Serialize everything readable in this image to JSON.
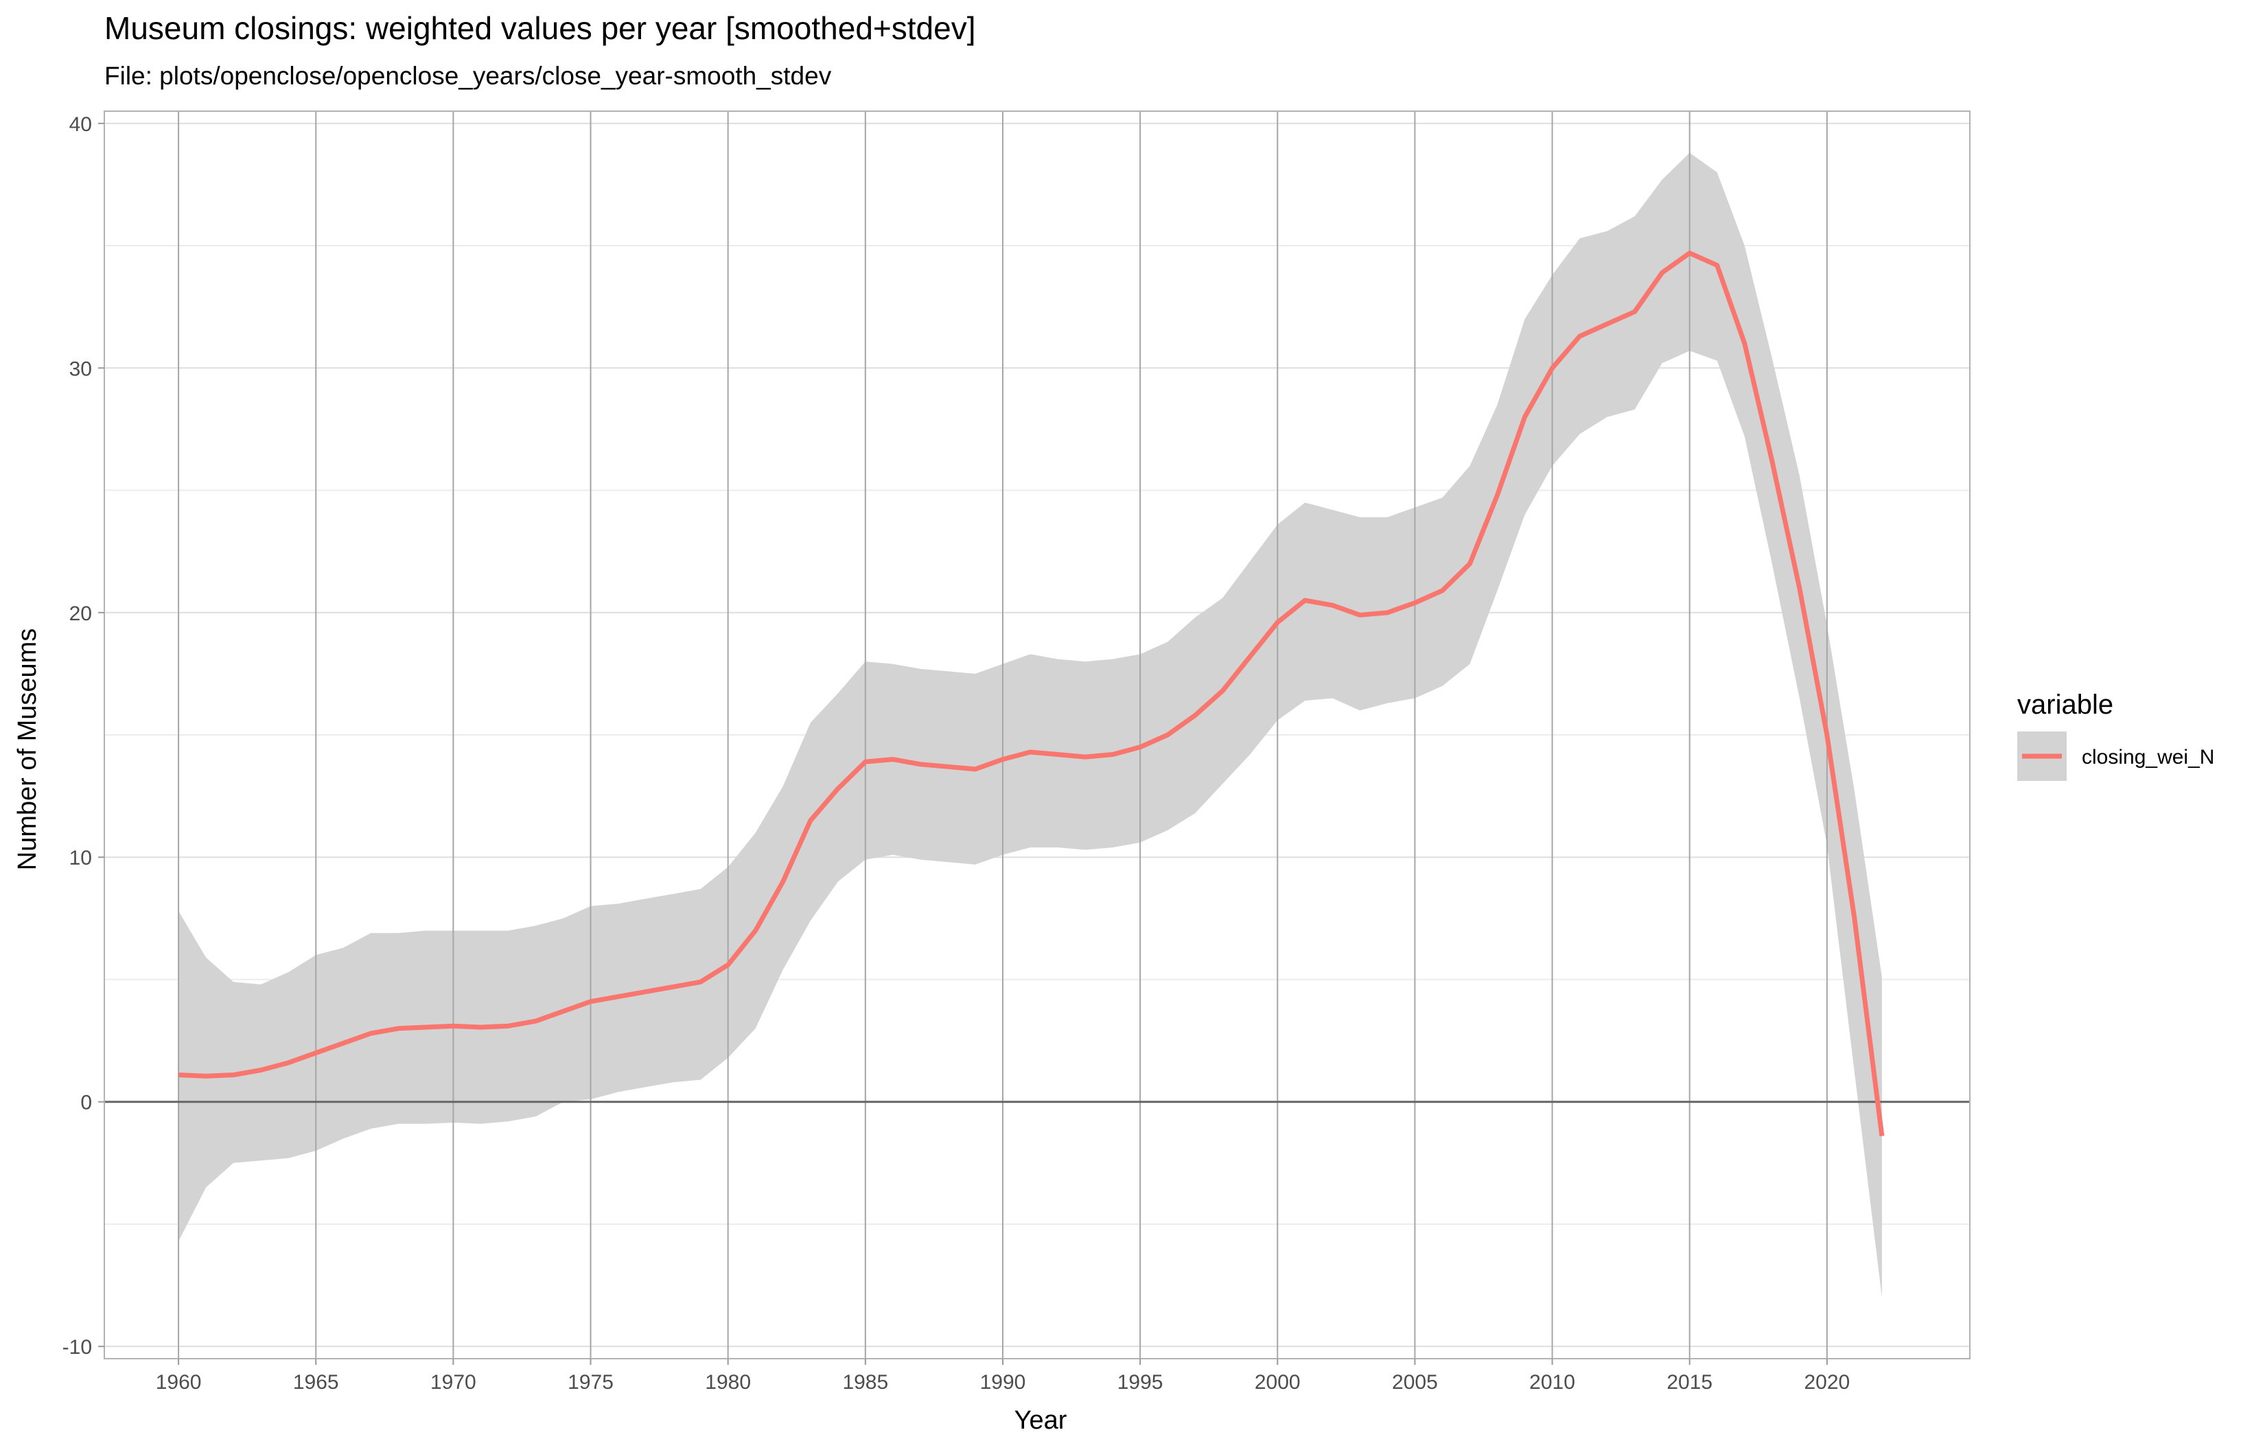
{
  "chart_data": {
    "type": "area",
    "title": "Museum closings: weighted values per year [smoothed+stdev]",
    "subtitle": "File: plots/openclose/openclose_years/close_year-smooth_stdev",
    "xlabel": "Year",
    "ylabel": "Number of Museums",
    "xlim": [
      1957.3,
      2025.2
    ],
    "ylim": [
      -10.5,
      40.5
    ],
    "x_ticks": [
      1960,
      1965,
      1970,
      1975,
      1980,
      1985,
      1990,
      1995,
      2000,
      2005,
      2010,
      2015,
      2020
    ],
    "y_ticks": [
      -10,
      0,
      10,
      20,
      30,
      40
    ],
    "grid": true,
    "legend": {
      "title": "variable",
      "position": "right",
      "entries": [
        "closing_wei_N"
      ]
    },
    "colors": {
      "line": "#F8766D",
      "ribbon": "#D3D3D3",
      "zero_line": "#666666"
    },
    "series": [
      {
        "name": "closing_wei_N",
        "x": [
          1960,
          1961,
          1962,
          1963,
          1964,
          1965,
          1966,
          1967,
          1968,
          1969,
          1970,
          1971,
          1972,
          1973,
          1974,
          1975,
          1976,
          1977,
          1978,
          1979,
          1980,
          1981,
          1982,
          1983,
          1984,
          1985,
          1986,
          1987,
          1988,
          1989,
          1990,
          1991,
          1992,
          1993,
          1994,
          1995,
          1996,
          1997,
          1998,
          1999,
          2000,
          2001,
          2002,
          2003,
          2004,
          2005,
          2006,
          2007,
          2008,
          2009,
          2010,
          2011,
          2012,
          2013,
          2014,
          2015,
          2016,
          2017,
          2018,
          2019,
          2020,
          2021,
          2022
        ],
        "y": [
          1.1,
          1.05,
          1.1,
          1.3,
          1.6,
          2.0,
          2.4,
          2.8,
          3.0,
          3.05,
          3.1,
          3.05,
          3.1,
          3.3,
          3.7,
          4.1,
          4.3,
          4.5,
          4.7,
          4.9,
          5.6,
          7.0,
          9.0,
          11.5,
          12.8,
          13.9,
          14.0,
          13.8,
          13.7,
          13.6,
          14.0,
          14.3,
          14.2,
          14.1,
          14.2,
          14.5,
          15.0,
          15.8,
          16.8,
          18.2,
          19.6,
          20.5,
          20.3,
          19.9,
          20.0,
          20.4,
          20.9,
          22.0,
          24.8,
          28.0,
          30.0,
          31.3,
          31.8,
          32.3,
          33.9,
          34.7,
          34.2,
          31.0,
          26.2,
          21.0,
          15.0,
          7.5,
          -1.4
        ],
        "ymin": [
          -5.7,
          -3.5,
          -2.5,
          -2.4,
          -2.3,
          -2.0,
          -1.5,
          -1.1,
          -0.9,
          -0.9,
          -0.85,
          -0.9,
          -0.8,
          -0.6,
          0.0,
          0.1,
          0.4,
          0.6,
          0.8,
          0.9,
          1.8,
          3.0,
          5.4,
          7.4,
          9.0,
          9.9,
          10.1,
          9.9,
          9.8,
          9.7,
          10.1,
          10.4,
          10.4,
          10.3,
          10.4,
          10.6,
          11.1,
          11.8,
          13.0,
          14.2,
          15.6,
          16.4,
          16.5,
          16.0,
          16.3,
          16.5,
          17.0,
          17.9,
          20.9,
          24.0,
          26.0,
          27.3,
          28.0,
          28.3,
          30.2,
          30.7,
          30.3,
          27.2,
          22.0,
          16.5,
          10.5,
          1.2,
          -8.0
        ],
        "ymax": [
          7.8,
          5.9,
          4.9,
          4.8,
          5.3,
          6.0,
          6.3,
          6.9,
          6.9,
          7.0,
          7.0,
          7.0,
          7.0,
          7.2,
          7.5,
          8.0,
          8.1,
          8.3,
          8.5,
          8.7,
          9.6,
          11.0,
          12.9,
          15.5,
          16.7,
          18.0,
          17.9,
          17.7,
          17.6,
          17.5,
          17.9,
          18.3,
          18.1,
          18.0,
          18.1,
          18.3,
          18.8,
          19.8,
          20.6,
          22.1,
          23.6,
          24.5,
          24.2,
          23.9,
          23.9,
          24.3,
          24.7,
          26.0,
          28.5,
          32.0,
          33.8,
          35.3,
          35.6,
          36.2,
          37.7,
          38.8,
          38.0,
          35.0,
          30.4,
          25.6,
          19.5,
          12.7,
          5.1
        ]
      }
    ]
  }
}
